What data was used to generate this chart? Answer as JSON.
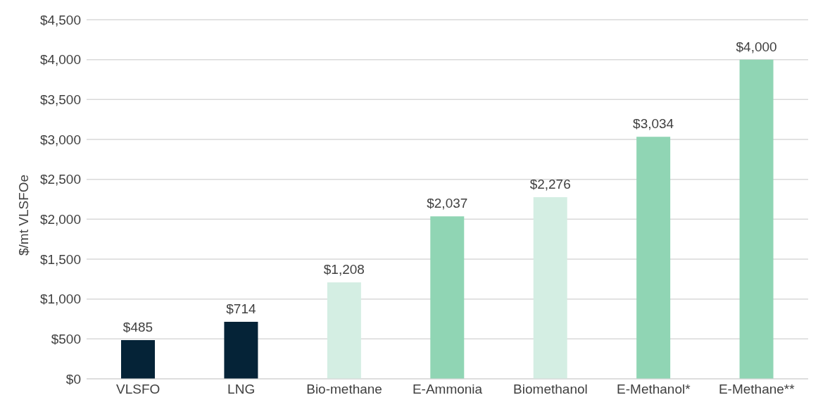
{
  "chart_data": {
    "type": "bar",
    "ylabel": "$/mt VLSFOe",
    "categories": [
      "VLSFO",
      "LNG",
      "Bio-methane",
      "E-Ammonia",
      "Biomethanol",
      "E-Methanol*",
      "E-Methane**"
    ],
    "values": [
      485,
      714,
      1208,
      2037,
      2276,
      3034,
      4000
    ],
    "value_labels": [
      "$485",
      "$714",
      "$1,208",
      "$2,037",
      "$2,276",
      "$3,034",
      "$4,000"
    ],
    "colors": [
      "#052337",
      "#052337",
      "#d4eee3",
      "#90d5b4",
      "#d4eee3",
      "#90d5b4",
      "#90d5b4"
    ],
    "ylim": [
      0,
      4500
    ],
    "yticks": [
      {
        "value": 0,
        "label": "$0"
      },
      {
        "value": 500,
        "label": "$500"
      },
      {
        "value": 1000,
        "label": "$1,000"
      },
      {
        "value": 1500,
        "label": "$1,500"
      },
      {
        "value": 2000,
        "label": "$2,000"
      },
      {
        "value": 2500,
        "label": "$2,500"
      },
      {
        "value": 3000,
        "label": "$3,000"
      },
      {
        "value": 3500,
        "label": "$3,500"
      },
      {
        "value": 4000,
        "label": "$4,000"
      },
      {
        "value": 4500,
        "label": "$4,500"
      }
    ],
    "grid": "y"
  }
}
